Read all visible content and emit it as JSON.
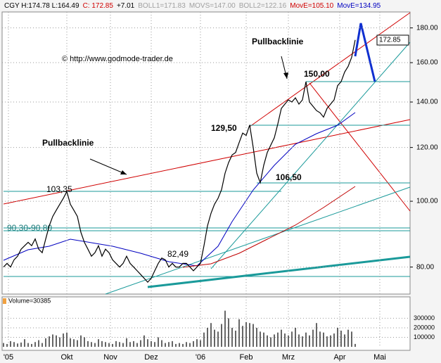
{
  "chart_data": [
    {
      "type": "line",
      "log_scale": true,
      "grid": true,
      "color": "#000000",
      "header": [
        {
          "text": "CGY H:174.78 L:164.49",
          "color": "#000000"
        },
        {
          "text": "C: 172.85",
          "color": "#d00000"
        },
        {
          "text": "+7.01",
          "color": "#000000"
        },
        {
          "text": "BOLL1=171.83",
          "color": "#a0a0a0"
        },
        {
          "text": "MOVS=147.00",
          "color": "#a0a0a0"
        },
        {
          "text": "BOLL2=122.16",
          "color": "#a0a0a0"
        },
        {
          "text": "MovE=105.10",
          "color": "#d00000"
        },
        {
          "text": "MovE=134.95",
          "color": "#0000c0"
        }
      ],
      "annotations": [
        "Pullbacklinie",
        "Pullbacklinie",
        "150,00",
        "129,50",
        "106,50",
        "103,35",
        "90,30-90,80",
        "82,49",
        "© http://www.godmode-trader.de",
        "172.85"
      ],
      "values": [
        80,
        81,
        80,
        82,
        83,
        85,
        86,
        87,
        86,
        88,
        85,
        84,
        88,
        92,
        95,
        97,
        99,
        101,
        103.35,
        99,
        97,
        95,
        90,
        87,
        85,
        83,
        84,
        86,
        83,
        85,
        84,
        82,
        81,
        80,
        81,
        83,
        81,
        80,
        79,
        78,
        77,
        76,
        77,
        79,
        81,
        82.49,
        82,
        80,
        81,
        80,
        80,
        81,
        81,
        80,
        79,
        80,
        81,
        86,
        92,
        96,
        99,
        101,
        104,
        110,
        114,
        117,
        118,
        122,
        126,
        125,
        129.5,
        120,
        110,
        106.5,
        113,
        118,
        121,
        124,
        130,
        137,
        139,
        141,
        140,
        142,
        139,
        141,
        150,
        140,
        138,
        136,
        135,
        133,
        137,
        139,
        141,
        148,
        150,
        155,
        158,
        163,
        172.85
      ],
      "xlim": [
        -0.4,
        115.6
      ],
      "xticks": [
        {
          "value": 1.4,
          "label": "'05"
        },
        {
          "value": 18,
          "label": "Okt"
        },
        {
          "value": 30.4,
          "label": "Nov"
        },
        {
          "value": 42,
          "label": "Dez"
        },
        {
          "value": 56,
          "label": "'06"
        },
        {
          "value": 69,
          "label": "Feb"
        },
        {
          "value": 81,
          "label": "Mrz"
        },
        {
          "value": 95.6,
          "label": "Apr"
        },
        {
          "value": 107,
          "label": "Mai"
        }
      ],
      "ylim": [
        73,
        190
      ],
      "yticks": [
        {
          "value": 80,
          "label": "80.00"
        },
        {
          "value": 100,
          "label": "100.00"
        },
        {
          "value": 120,
          "label": "120.00"
        },
        {
          "value": 140,
          "label": "140.00"
        },
        {
          "value": 160,
          "label": "160.00"
        },
        {
          "value": 180,
          "label": "180.00"
        }
      ]
    },
    {
      "type": "bar",
      "title": "Volume=30385",
      "color": "#000000",
      "values": [
        40000,
        30000,
        60000,
        50000,
        35000,
        45000,
        80000,
        40000,
        30000,
        50000,
        70000,
        40000,
        90000,
        110000,
        130000,
        120000,
        100000,
        140000,
        150000,
        90000,
        80000,
        70000,
        120000,
        100000,
        60000,
        50000,
        40000,
        80000,
        60000,
        50000,
        40000,
        30000,
        60000,
        50000,
        40000,
        90000,
        50000,
        60000,
        40000,
        70000,
        120000,
        80000,
        60000,
        50000,
        100000,
        70000,
        40000,
        50000,
        60000,
        30000,
        40000,
        30000,
        50000,
        40000,
        60000,
        80000,
        70000,
        150000,
        200000,
        250000,
        180000,
        160000,
        240000,
        380000,
        300000,
        200000,
        170000,
        290000,
        220000,
        260000,
        250000,
        240000,
        200000,
        160000,
        150000,
        120000,
        100000,
        130000,
        150000,
        180000,
        140000,
        120000,
        160000,
        200000,
        130000,
        110000,
        150000,
        120000,
        180000,
        250000,
        160000,
        150000,
        110000,
        120000,
        140000,
        200000,
        170000,
        130000,
        180000,
        160000,
        30385
      ],
      "ylim": [
        0,
        525000
      ],
      "yticks": [
        100000,
        200000,
        300000
      ]
    }
  ]
}
